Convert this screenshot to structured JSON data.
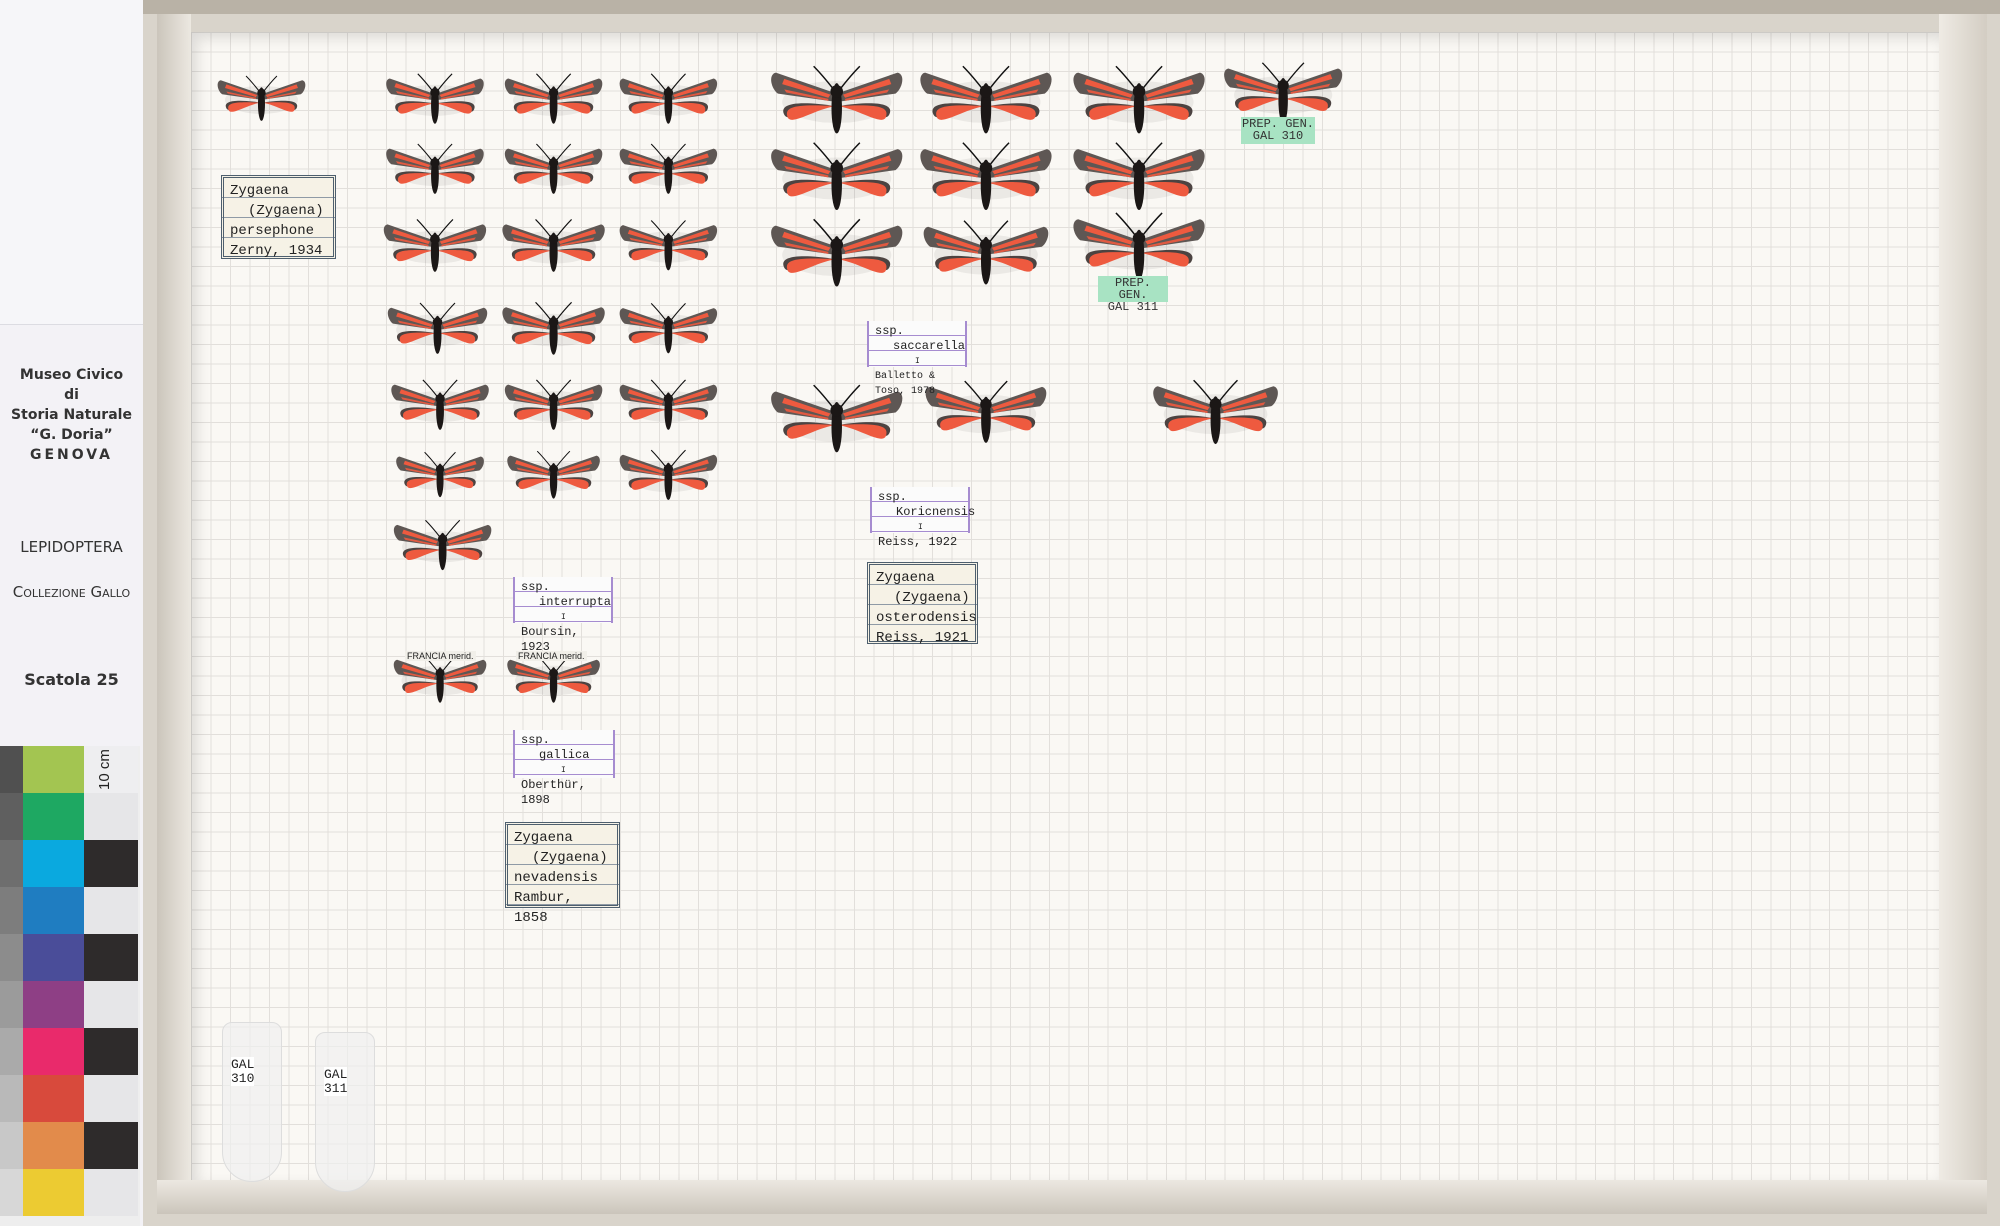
{
  "museum_panel": {
    "line1": "Museo Civico",
    "line2": "di",
    "line3": "Storia Naturale",
    "line4": "“G. Doria”",
    "line5": "GENOVA",
    "order": "LEPIDOPTERA",
    "collection": "Collezione Gallo",
    "box": "Scatola 25"
  },
  "color_chart": {
    "scale_label": "10 cm",
    "patches": [
      "#a3c551",
      "#1ea862",
      "#0aa9df",
      "#1f7dc1",
      "#4a4d99",
      "#8e3f85",
      "#e92a6b",
      "#d84a3c",
      "#e28b4b",
      "#eccb32"
    ]
  },
  "labels": {
    "persephone": [
      "Zygaena",
      "(Zygaena)",
      "persephone",
      "Zerny, 1934"
    ],
    "saccarella": [
      "ssp.",
      "saccarella",
      "I",
      "Balletto & Toso, 1978"
    ],
    "koricnensis": [
      "ssp.",
      "Koricnensis",
      "I",
      "Reiss, 1922"
    ],
    "osterodensis": [
      "Zygaena",
      "(Zygaena)",
      "osterodensis",
      "Reiss, 1921"
    ],
    "interrupta": [
      "ssp.",
      "interrupta",
      "I",
      "Boursin, 1923"
    ],
    "gallica": [
      "ssp.",
      "gallica",
      "I",
      "Oberthür, 1898"
    ],
    "nevadensis": [
      "Zygaena",
      "(Zygaena)",
      "nevadensis",
      "Rambur, 1858"
    ]
  },
  "prep_labels": {
    "gal310": [
      "PREP. GEN.",
      "GAL 310"
    ],
    "gal311": [
      "PREP. GEN.",
      "GAL 311"
    ]
  },
  "specimen_labels": {
    "francia1": "FRANCIA merid.",
    "francia2": "FRANCIA merid."
  },
  "tubes": {
    "t1": [
      "GAL",
      "310"
    ],
    "t2": [
      "GAL",
      "311"
    ]
  },
  "specimen_colors": {
    "forewing": "#5e5754",
    "red": "#ee5a3f",
    "body": "#1b1716"
  }
}
